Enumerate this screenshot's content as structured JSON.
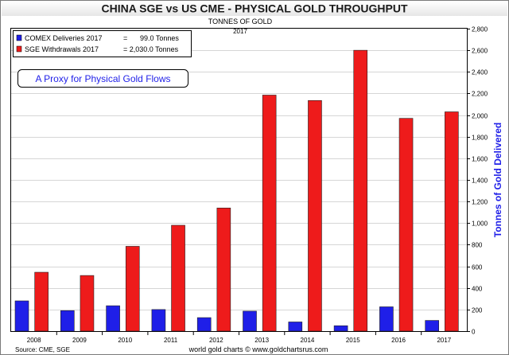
{
  "chart_data": {
    "type": "bar",
    "title": "CHINA SGE vs US CME - PHYSICAL GOLD THROUGHPUT",
    "subtitle": "TONNES OF GOLD",
    "year_label": "2017",
    "ylabel": "Tonnes of Gold Delivered",
    "ylim": [
      0,
      2800
    ],
    "ytick_step": 200,
    "yticks": [
      "0",
      "200",
      "400",
      "600",
      "800",
      "1,000",
      "1,200",
      "1,400",
      "1,600",
      "1,800",
      "2,000",
      "2,200",
      "2,400",
      "2,600",
      "2,800"
    ],
    "categories": [
      "2008",
      "2009",
      "2010",
      "2011",
      "2012",
      "2013",
      "2014",
      "2015",
      "2016",
      "2017"
    ],
    "series": [
      {
        "name": "COMEX Deliveries 2017",
        "color": "#1f1fe8",
        "values": [
          280,
          190,
          235,
          200,
          125,
          185,
          85,
          50,
          225,
          99
        ]
      },
      {
        "name": "SGE Withdrawals 2017",
        "color": "#ee1b1b",
        "values": [
          545,
          515,
          785,
          980,
          1140,
          2185,
          2135,
          2600,
          1970,
          2030
        ]
      }
    ],
    "legend": [
      {
        "name": "COMEX Deliveries 2017",
        "eq": "=",
        "value": "99.0 Tonnes",
        "color": "#1f1fe8"
      },
      {
        "name": "SGE Withdrawals 2017",
        "eq": "= 2,030.0 Tonnes",
        "value": "",
        "color": "#ee1b1b"
      }
    ],
    "annotation": "A Proxy for Physical Gold Flows",
    "source": "Source: CME, SGE",
    "footer": "world gold charts © www.goldchartsrus.com"
  }
}
